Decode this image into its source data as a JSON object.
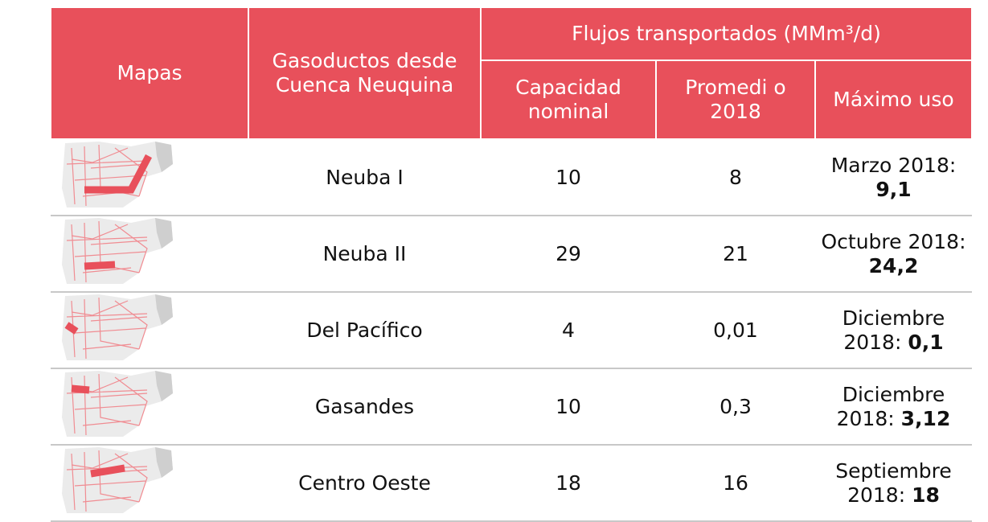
{
  "table": {
    "header": {
      "mapas": "Mapas",
      "gasoductos": "Gasoductos desde Cuenca Neuquina",
      "flujos": "Flujos transportados (MMm³/d)",
      "capacidad": "Capacidad nominal",
      "promedio": "Promedi o 2018",
      "maximo": "Máximo uso"
    },
    "rows": [
      {
        "name": "Neuba I",
        "capacidad": "10",
        "promedio": "8",
        "maximo": {
          "label": "Marzo 2018:",
          "value": "9,1"
        }
      },
      {
        "name": "Neuba II",
        "capacidad": "29",
        "promedio": "21",
        "maximo": {
          "label": "Octubre 2018:",
          "value": "24,2"
        }
      },
      {
        "name": "Del Pacífico",
        "capacidad": "4",
        "promedio": "0,01",
        "maximo": {
          "label": "Diciembre 2018:",
          "value": "0,1"
        }
      },
      {
        "name": "Gasandes",
        "capacidad": "10",
        "promedio": "0,3",
        "maximo": {
          "label": "Diciembre 2018:",
          "value": "3,12"
        }
      },
      {
        "name": "Centro Oeste",
        "capacidad": "18",
        "promedio": "16",
        "maximo": {
          "label": "Septiembre 2018:",
          "value": "18"
        }
      }
    ]
  }
}
